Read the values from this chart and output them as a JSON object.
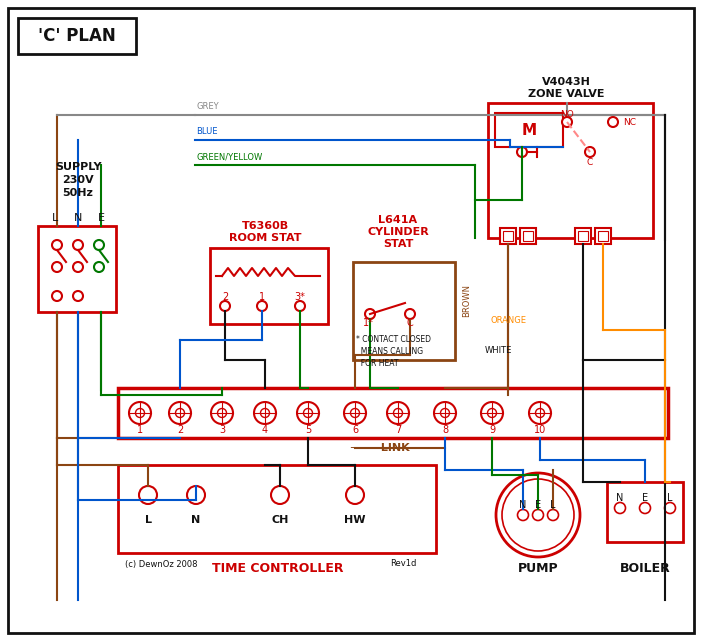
{
  "title": "'C' PLAN",
  "bg_color": "#ffffff",
  "red": "#cc0000",
  "blue": "#0055cc",
  "green": "#007700",
  "brown": "#8B4513",
  "grey": "#888888",
  "orange": "#FF8C00",
  "black": "#111111",
  "pink_dashed": "#ff8888",
  "zone_valve_title": "V4043H\nZONE VALVE",
  "room_stat_title": "T6360B\nROOM STAT",
  "cylinder_stat_title": "L641A\nCYLINDER\nSTAT",
  "time_controller_label": "TIME CONTROLLER",
  "pump_label": "PUMP",
  "boiler_label": "BOILER",
  "footnote": "* CONTACT CLOSED\n  MEANS CALLING\n  FOR HEAT",
  "copyright": "(c) DewnOz 2008",
  "rev": "Rev1d"
}
